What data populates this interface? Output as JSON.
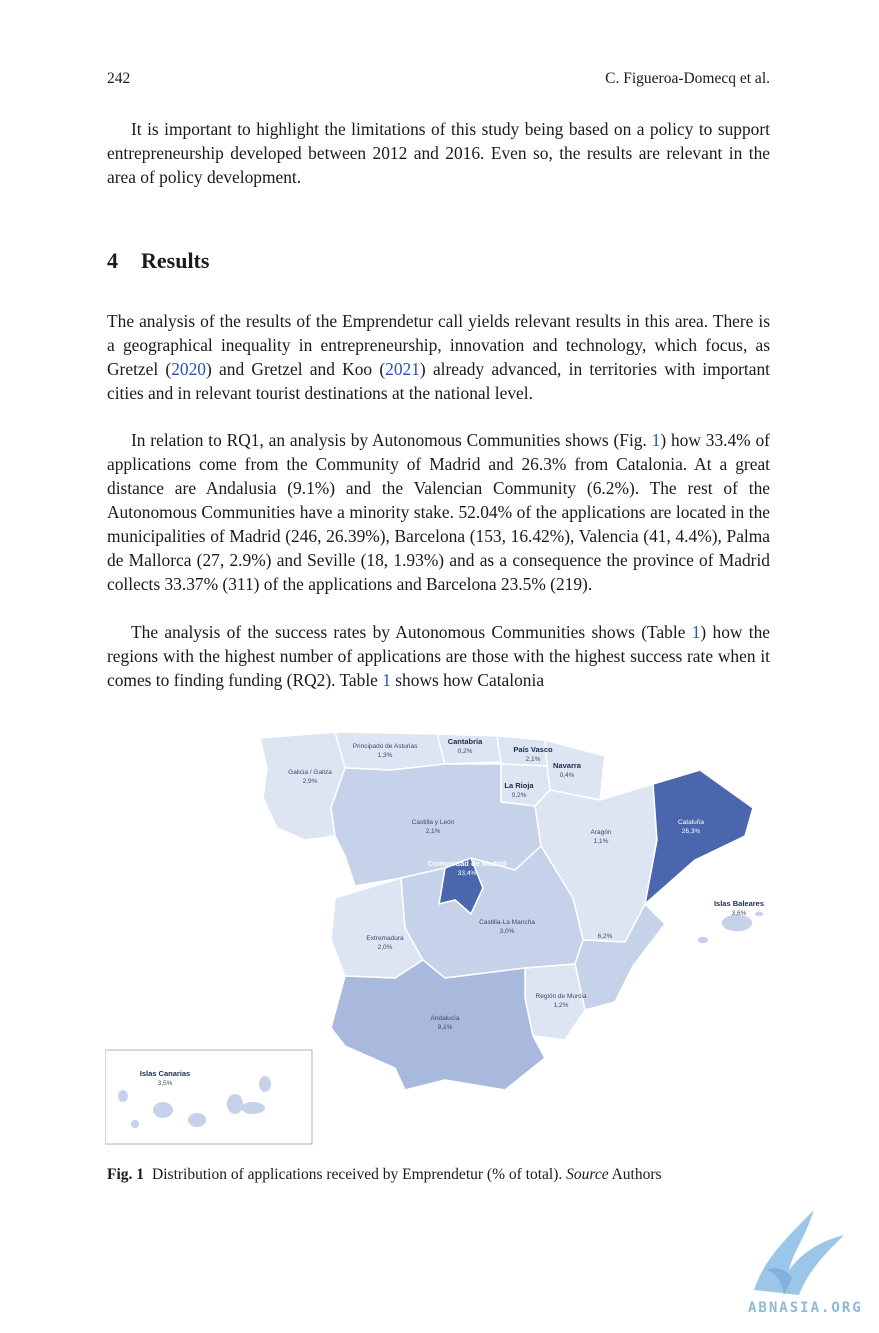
{
  "header": {
    "page_number": "242",
    "authors": "C. Figueroa-Domecq et al."
  },
  "intro_paragraph": "It is important to highlight the limitations of this study being based on a policy to support entrepreneurship developed between 2012 and 2016. Even so, the results are relevant in the area of policy development.",
  "section": {
    "number": "4",
    "title": "Results"
  },
  "para1": {
    "a": "The analysis of the results of the Emprendetur call yields relevant results in this area. There is a geographical inequality in entrepreneurship, innovation and technology, which focus, as Gretzel (",
    "ref1": "2020",
    "b": ") and Gretzel and Koo (",
    "ref2": "2021",
    "c": ") already advanced, in territories with important cities and in relevant tourist destinations at the national level."
  },
  "para2": {
    "a": "In relation to RQ1, an analysis by Autonomous Communities shows (Fig. ",
    "ref": "1",
    "b": ") how 33.4% of applications come from the Community of Madrid and 26.3% from Catalonia. At a great distance are Andalusia (9.1%) and the Valencian Community (6.2%). The rest of the Autonomous Communities have a minority stake. 52.04% of the applications are located in the municipalities of Madrid (246, 26.39%), Barcelona (153, 16.42%), Valencia (41, 4.4%), Palma de Mallorca (27, 2.9%) and Seville (18, 1.93%) and as a consequence the province of Madrid collects 33.37% (311) of the applications and Barcelona 23.5% (219)."
  },
  "para3": {
    "a": "The analysis of the success rates by Autonomous Communities shows (Table ",
    "ref1": "1",
    "b": ") how the regions with the highest number of applications are those with the highest success rate when it comes to finding funding (RQ2). Table ",
    "ref2": "1",
    "c": " shows how Catalonia"
  },
  "map": {
    "regions": [
      {
        "name": "Principado de Asturias",
        "value": "1,3%"
      },
      {
        "name": "Cantabria",
        "value": "0,2%"
      },
      {
        "name": "País Vasco",
        "value": "2,1%"
      },
      {
        "name": "Navarra",
        "value": "0,4%"
      },
      {
        "name": "Galicia / Galiza",
        "value": "2,9%"
      },
      {
        "name": "La Rioja",
        "value": "0,2%"
      },
      {
        "name": "Castilla y León",
        "value": "2,1%"
      },
      {
        "name": "Aragón",
        "value": "1,1%"
      },
      {
        "name": "Cataluña",
        "value": "26,3%"
      },
      {
        "name": "Comunidad de Madrid",
        "value": "33,4%"
      },
      {
        "name": "Islas Baleares",
        "value": "3,6%"
      },
      {
        "name": "Castilla-La Mancha",
        "value": "3,0%"
      },
      {
        "name": "Extremadura",
        "value": "2,0%"
      },
      {
        "name": "Región de Murcia",
        "value": "1,2%"
      },
      {
        "name": "Andalucía",
        "value": "9,1%"
      },
      {
        "name": "Islas Canarias",
        "value": "3,5%"
      }
    ],
    "valencia_value": "6,2%",
    "colors": {
      "light": "#dde5f3",
      "mid": "#c5d2ea",
      "dark": "#a9b9dd",
      "strong": "#4a67ad"
    }
  },
  "caption": {
    "label": "Fig. 1",
    "text": "Distribution of applications received by Emprendetur (% of total).",
    "source_word": "Source",
    "source_rest": "Authors"
  },
  "watermark": {
    "text": "ABNASIA.ORG"
  }
}
